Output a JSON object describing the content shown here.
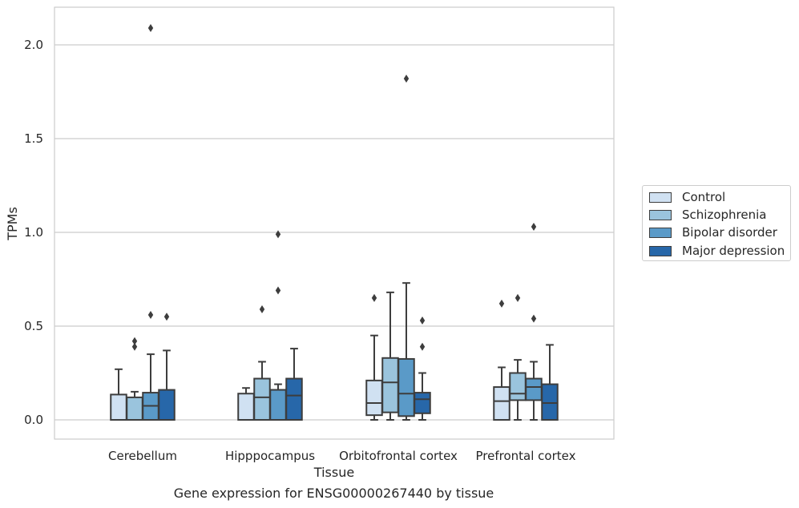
{
  "chart_data": {
    "type": "boxplot",
    "title": "",
    "xlabel": "Tissue",
    "ylabel": "TPMs",
    "ylim": [
      -0.1,
      2.2
    ],
    "yticks": [
      "0.0",
      "0.5",
      "1.0",
      "1.5",
      "2.0"
    ],
    "grid": "horizontal",
    "legend_position": "right",
    "categories": [
      "Cerebellum",
      "Hipppocampus",
      "Orbitofrontal cortex",
      "Prefrontal cortex"
    ],
    "series": [
      {
        "name": "Control",
        "color": "#d0e1f2",
        "boxes": [
          {
            "min": 0.0,
            "q1": 0.0,
            "median": 0.0,
            "q3": 0.135,
            "max": 0.27,
            "outliers": []
          },
          {
            "min": 0.0,
            "q1": 0.0,
            "median": 0.0,
            "q3": 0.14,
            "max": 0.17,
            "outliers": []
          },
          {
            "min": 0.0,
            "q1": 0.025,
            "median": 0.09,
            "q3": 0.21,
            "max": 0.45,
            "outliers": [
              0.65
            ]
          },
          {
            "min": 0.0,
            "q1": 0.0,
            "median": 0.1,
            "q3": 0.175,
            "max": 0.28,
            "outliers": [
              0.62
            ]
          }
        ]
      },
      {
        "name": "Schizophrenia",
        "color": "#9ac4dd",
        "boxes": [
          {
            "min": 0.0,
            "q1": 0.0,
            "median": 0.0,
            "q3": 0.12,
            "max": 0.15,
            "outliers": [
              0.39,
              0.42
            ]
          },
          {
            "min": 0.0,
            "q1": 0.0,
            "median": 0.12,
            "q3": 0.22,
            "max": 0.31,
            "outliers": [
              0.59
            ]
          },
          {
            "min": 0.0,
            "q1": 0.04,
            "median": 0.2,
            "q3": 0.33,
            "max": 0.68,
            "outliers": []
          },
          {
            "min": 0.0,
            "q1": 0.105,
            "median": 0.14,
            "q3": 0.25,
            "max": 0.32,
            "outliers": [
              0.65
            ]
          }
        ]
      },
      {
        "name": "Bipolar disorder",
        "color": "#5a9ac8",
        "boxes": [
          {
            "min": 0.0,
            "q1": 0.0,
            "median": 0.075,
            "q3": 0.145,
            "max": 0.35,
            "outliers": [
              0.56,
              2.09
            ]
          },
          {
            "min": 0.0,
            "q1": 0.0,
            "median": 0.16,
            "q3": 0.16,
            "max": 0.19,
            "outliers": [
              0.69,
              0.99
            ]
          },
          {
            "min": 0.0,
            "q1": 0.02,
            "median": 0.14,
            "q3": 0.325,
            "max": 0.73,
            "outliers": [
              1.82
            ]
          },
          {
            "min": 0.0,
            "q1": 0.105,
            "median": 0.175,
            "q3": 0.22,
            "max": 0.31,
            "outliers": [
              0.54,
              1.03
            ]
          }
        ]
      },
      {
        "name": "Major depression",
        "color": "#2767a9",
        "boxes": [
          {
            "min": 0.0,
            "q1": 0.0,
            "median": 0.0,
            "q3": 0.16,
            "max": 0.37,
            "outliers": [
              0.55
            ]
          },
          {
            "min": 0.0,
            "q1": 0.0,
            "median": 0.13,
            "q3": 0.22,
            "max": 0.38,
            "outliers": []
          },
          {
            "min": 0.0,
            "q1": 0.035,
            "median": 0.11,
            "q3": 0.145,
            "max": 0.25,
            "outliers": [
              0.39,
              0.53
            ]
          },
          {
            "min": 0.0,
            "q1": 0.0,
            "median": 0.09,
            "q3": 0.19,
            "max": 0.4,
            "outliers": []
          }
        ]
      }
    ],
    "caption": "Gene expression for ENSG00000267440 by tissue"
  }
}
